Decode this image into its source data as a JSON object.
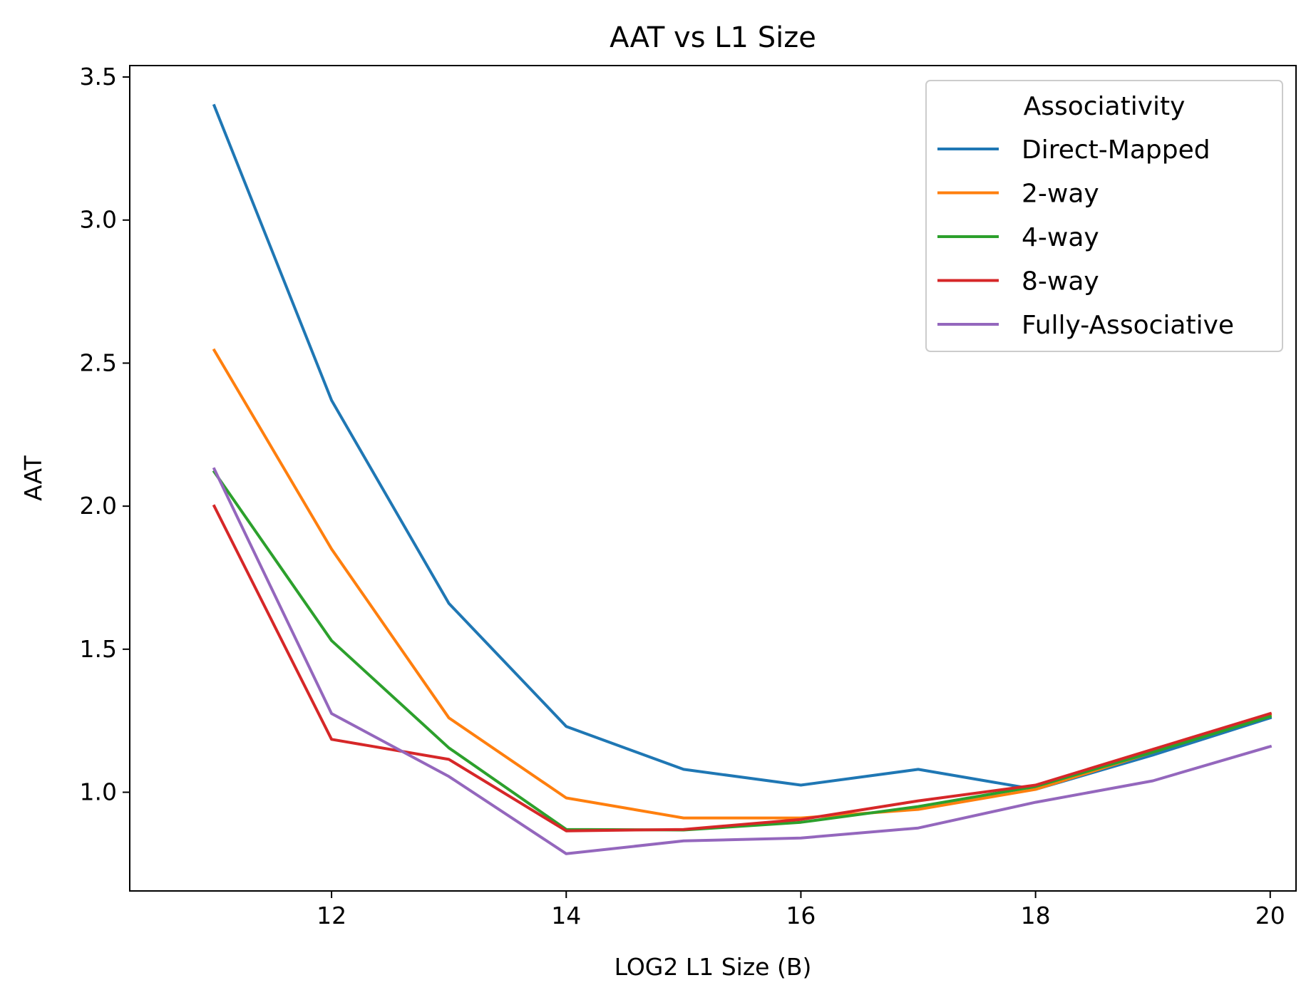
{
  "chart_data": {
    "type": "line",
    "title": "AAT vs L1 Size",
    "xlabel": "LOG2 L1 Size (B)",
    "ylabel": "AAT",
    "x": [
      11,
      12,
      13,
      14,
      15,
      16,
      17,
      18,
      19,
      20
    ],
    "xlim": [
      10.28,
      20.22
    ],
    "ylim": [
      0.655,
      3.54
    ],
    "xticks": [
      12,
      14,
      16,
      18,
      20
    ],
    "yticks": [
      1.0,
      1.5,
      2.0,
      2.5,
      3.0,
      3.5
    ],
    "ytick_labels": [
      "1.0",
      "1.5",
      "2.0",
      "2.5",
      "3.0",
      "3.5"
    ],
    "grid": false,
    "legend": {
      "title": "Associativity",
      "placement": "top-right"
    },
    "series": [
      {
        "name": "Direct-Mapped",
        "color": "#1f77b4",
        "values": [
          3.4,
          2.37,
          1.66,
          1.23,
          1.08,
          1.025,
          1.08,
          1.01,
          1.13,
          1.26
        ]
      },
      {
        "name": "2-way",
        "color": "#ff7f0e",
        "values": [
          2.545,
          1.85,
          1.26,
          0.98,
          0.91,
          0.91,
          0.94,
          1.01,
          1.14,
          1.27
        ]
      },
      {
        "name": "4-way",
        "color": "#2ca02c",
        "values": [
          2.12,
          1.53,
          1.155,
          0.87,
          0.868,
          0.895,
          0.95,
          1.02,
          1.14,
          1.265
        ]
      },
      {
        "name": "8-way",
        "color": "#d62728",
        "values": [
          2.0,
          1.185,
          1.115,
          0.865,
          0.87,
          0.905,
          0.97,
          1.025,
          1.15,
          1.275
        ]
      },
      {
        "name": "Fully-Associative",
        "color": "#9467bd",
        "values": [
          2.13,
          1.275,
          1.055,
          0.785,
          0.83,
          0.84,
          0.875,
          0.965,
          1.04,
          1.16
        ]
      }
    ]
  }
}
